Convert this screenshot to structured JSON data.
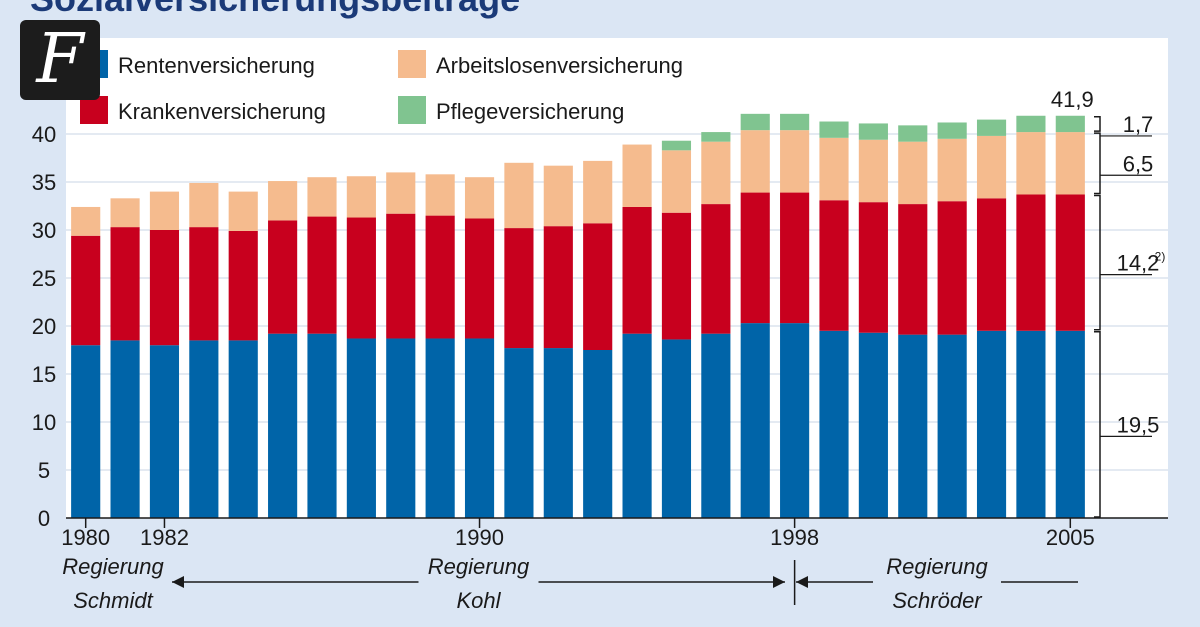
{
  "title": "Sozialversicherungsbeiträge",
  "logo": {
    "letter": "F",
    "icon": "faz-logo-icon"
  },
  "chart_data": {
    "type": "bar",
    "stacked": true,
    "title": "Sozialversicherungsbeiträge",
    "ylim": [
      0,
      44
    ],
    "yticks": [
      0,
      5,
      10,
      15,
      20,
      25,
      30,
      35,
      40
    ],
    "grid": true,
    "legend_position": "top-left",
    "categories": [
      "1980",
      "1981",
      "1982",
      "1983",
      "1984",
      "1985",
      "1986",
      "1987",
      "1988",
      "1989",
      "1990",
      "1991",
      "1992",
      "1993",
      "1994",
      "1995",
      "1996",
      "1997",
      "1998",
      "1999",
      "2000",
      "2001",
      "2002",
      "2003",
      "2004",
      "2005"
    ],
    "x_tick_labels": [
      "1980",
      "1982",
      "1990",
      "1998",
      "2005"
    ],
    "series": [
      {
        "name": "Rentenversicherung",
        "color": "#0064a8",
        "values": [
          18.0,
          18.5,
          18.0,
          18.5,
          18.5,
          19.2,
          19.2,
          18.7,
          18.7,
          18.7,
          18.7,
          17.7,
          17.7,
          17.5,
          19.2,
          18.6,
          19.2,
          20.3,
          20.3,
          19.5,
          19.3,
          19.1,
          19.1,
          19.5,
          19.5,
          19.5
        ]
      },
      {
        "name": "Krankenversicherung",
        "color": "#c8001e",
        "values": [
          11.4,
          11.8,
          12.0,
          11.8,
          11.4,
          11.8,
          12.2,
          12.6,
          13.0,
          12.8,
          12.5,
          12.5,
          12.7,
          13.2,
          13.2,
          13.2,
          13.5,
          13.6,
          13.6,
          13.6,
          13.6,
          13.6,
          13.9,
          13.8,
          14.2,
          14.2
        ]
      },
      {
        "name": "Arbeitslosenversicherung",
        "color": "#f5bb8e",
        "values": [
          3.0,
          3.0,
          4.0,
          4.6,
          4.1,
          4.1,
          4.1,
          4.3,
          4.3,
          4.3,
          4.3,
          6.8,
          6.3,
          6.5,
          6.5,
          6.5,
          6.5,
          6.5,
          6.5,
          6.5,
          6.5,
          6.5,
          6.5,
          6.5,
          6.5,
          6.5
        ]
      },
      {
        "name": "Pflegeversicherung",
        "color": "#80c490",
        "values": [
          0,
          0,
          0,
          0,
          0,
          0,
          0,
          0,
          0,
          0,
          0,
          0,
          0,
          0,
          0,
          1.0,
          1.0,
          1.7,
          1.7,
          1.7,
          1.7,
          1.7,
          1.7,
          1.7,
          1.7,
          1.7
        ]
      }
    ],
    "annotations": {
      "total_2005": "41,9",
      "brackets": [
        {
          "label": "1,7",
          "from": 40.2,
          "to": 41.9
        },
        {
          "label": "6,5",
          "from": 33.7,
          "to": 40.2
        },
        {
          "label": "14,2",
          "sup": "2)",
          "from": 19.5,
          "to": 33.7
        },
        {
          "label": "19,5",
          "from": 0,
          "to": 19.5
        }
      ]
    },
    "governments": [
      {
        "line1": "Regierung",
        "line2": "Schmidt",
        "from": 0,
        "to": 2
      },
      {
        "line1": "Regierung",
        "line2": "Kohl",
        "from": 2,
        "to": 18
      },
      {
        "line1": "Regierung",
        "line2": "Schröder",
        "from": 18,
        "to": 25
      }
    ]
  }
}
